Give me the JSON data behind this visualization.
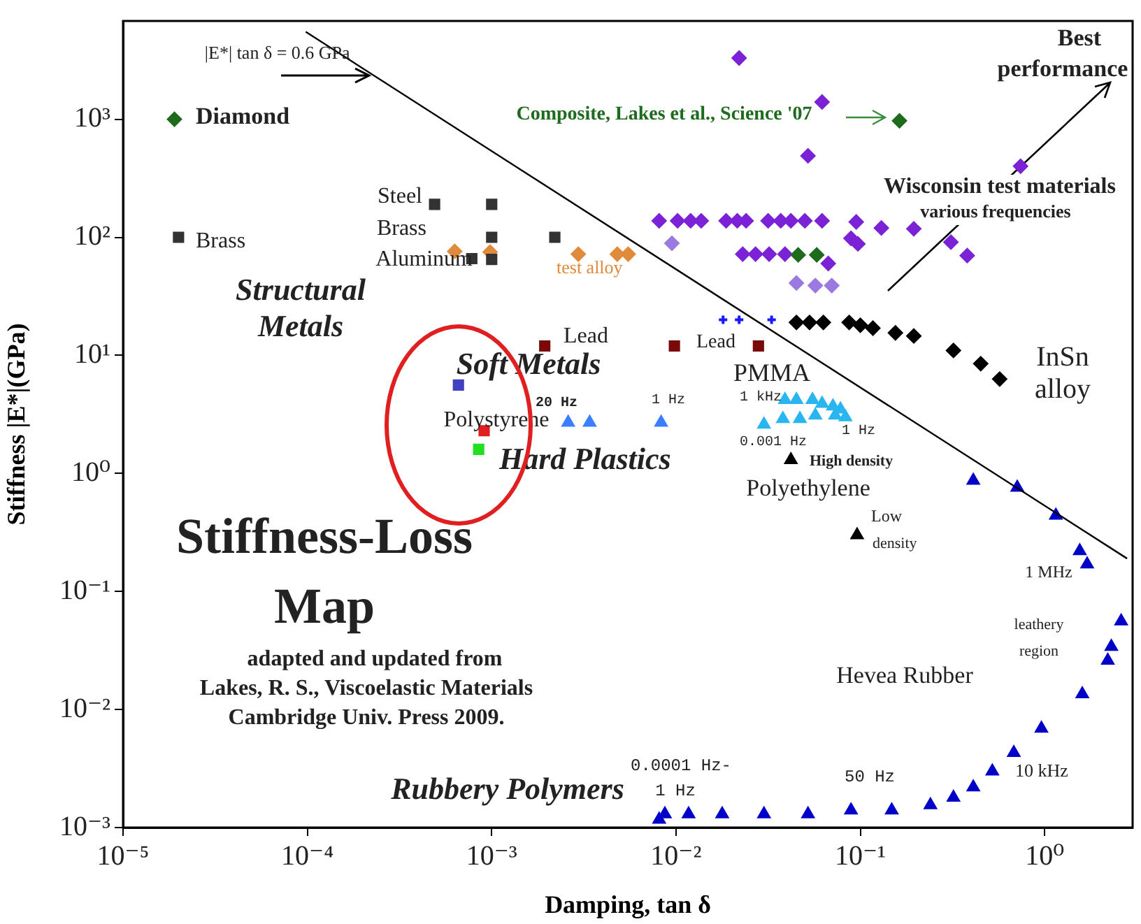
{
  "chart_data": {
    "type": "scatter",
    "xlabel": "Damping, tan δ",
    "ylabel": "Stiffness |E*|(GPa)",
    "log": "xy",
    "grid": false,
    "legend": false,
    "xlim": [
      1e-05,
      3
    ],
    "ylim": [
      0.001,
      6800
    ],
    "xticks": [
      {
        "value": 1e-05,
        "label": "10⁻⁵"
      },
      {
        "value": 0.0001,
        "label": "10⁻⁴"
      },
      {
        "value": 0.001,
        "label": "10⁻³"
      },
      {
        "value": 0.01,
        "label": "10⁻²"
      },
      {
        "value": 0.1,
        "label": "10⁻¹"
      },
      {
        "value": 1,
        "label": "10⁰"
      }
    ],
    "yticks": [
      {
        "value": 0.001,
        "label": "10⁻³"
      },
      {
        "value": 0.01,
        "label": "10⁻²"
      },
      {
        "value": 0.1,
        "label": "10⁻¹"
      },
      {
        "value": 1,
        "label": "10⁰"
      },
      {
        "value": 10,
        "label": "10¹"
      },
      {
        "value": 100,
        "label": "10²"
      },
      {
        "value": 1000,
        "label": "10³"
      }
    ],
    "series": [
      {
        "type": "line",
        "color": "#000000",
        "marker": "none",
        "line_style": "solid",
        "x": [
          9.8e-05,
          2.8
        ],
        "values": [
          5500,
          0.19
        ]
      },
      {
        "color": "#1e6b1e",
        "marker": "diamond",
        "x": [
          1.9e-05,
          0.163,
          0.046,
          0.058
        ],
        "values": [
          1000,
          970,
          71,
          71
        ]
      },
      {
        "color": "#333333",
        "marker": "square",
        "x": [
          2e-05,
          0.00049,
          0.001,
          0.001,
          0.0022,
          0.00078,
          0.001
        ],
        "values": [
          100,
          190,
          190,
          100,
          100,
          66,
          65
        ]
      },
      {
        "color": "#e08a3c",
        "marker": "diamond",
        "x": [
          0.00063,
          0.00098,
          0.00295,
          0.0048,
          0.0055
        ],
        "values": [
          76,
          75,
          72,
          72,
          72
        ]
      },
      {
        "color": "#7a0a0a",
        "marker": "square",
        "x": [
          0.00194,
          0.0098,
          0.028
        ],
        "values": [
          12,
          12,
          12
        ]
      },
      {
        "color": "#4040c0",
        "marker": "square",
        "x": [
          0.00066
        ],
        "values": [
          5.6
        ]
      },
      {
        "color": "#e02020",
        "marker": "square",
        "x": [
          0.00091
        ],
        "values": [
          2.3
        ]
      },
      {
        "color": "#20e020",
        "marker": "square",
        "x": [
          0.00085
        ],
        "values": [
          1.6
        ]
      },
      {
        "color": "#3a7fff",
        "marker": "triangle",
        "x": [
          0.0026,
          0.0034,
          0.0083
        ],
        "values": [
          2.7,
          2.7,
          2.7
        ]
      },
      {
        "color": "#29b6f0",
        "marker": "triangle",
        "x": [
          0.039,
          0.045,
          0.055,
          0.062,
          0.071,
          0.078,
          0.03,
          0.038,
          0.047,
          0.057,
          0.073,
          0.083
        ],
        "values": [
          4.2,
          4.2,
          4.2,
          3.9,
          3.7,
          3.5,
          2.6,
          2.9,
          2.9,
          3.1,
          3.1,
          3.0
        ]
      },
      {
        "color": "#000000",
        "marker": "triangle",
        "x": [
          0.042,
          0.096
        ],
        "values": [
          1.3,
          0.3
        ]
      },
      {
        "color": "#000000",
        "marker": "diamond",
        "x": [
          0.045,
          0.053,
          0.063,
          0.087,
          0.1,
          0.117,
          0.155,
          0.195,
          0.32,
          0.45,
          0.57
        ],
        "values": [
          19,
          19,
          19,
          19,
          18,
          17,
          15.5,
          14.6,
          11,
          8.5,
          6.3
        ]
      },
      {
        "color": "#1a1aff",
        "marker": "cross",
        "x": [
          0.018,
          0.022,
          0.033
        ],
        "values": [
          20,
          20,
          20
        ]
      },
      {
        "color": "#0000c8",
        "marker": "triangle",
        "x": [
          0.41,
          0.71,
          1.15,
          1.55,
          1.7,
          0.0081,
          0.0087,
          0.0117,
          0.0178,
          0.03,
          0.052,
          0.089,
          0.148,
          0.24,
          0.32,
          0.41,
          0.52,
          0.68,
          0.96,
          1.6,
          2.2,
          2.3,
          2.6
        ],
        "values": [
          0.87,
          0.76,
          0.44,
          0.22,
          0.17,
          0.00117,
          0.0013,
          0.0013,
          0.0013,
          0.0013,
          0.0013,
          0.0014,
          0.0014,
          0.00155,
          0.0018,
          0.0022,
          0.003,
          0.0043,
          0.0069,
          0.0135,
          0.026,
          0.034,
          0.056
        ]
      },
      {
        "color": "#7b22d6",
        "marker": "diamond",
        "x": [
          0.022,
          0.062,
          0.052,
          0.74,
          0.0081,
          0.0102,
          0.012,
          0.0137,
          0.0187,
          0.0215,
          0.024,
          0.0316,
          0.037,
          0.042,
          0.05,
          0.062,
          0.095,
          0.13,
          0.195,
          0.31,
          0.38,
          0.089,
          0.097,
          0.023,
          0.027,
          0.032,
          0.039,
          0.067
        ],
        "values": [
          3300,
          1400,
          490,
          400,
          138,
          138,
          138,
          138,
          138,
          138,
          138,
          138,
          138,
          138,
          138,
          138,
          135,
          120,
          118,
          91,
          70,
          98,
          88,
          72,
          72,
          72,
          72,
          60
        ]
      },
      {
        "color": "#9a7ae0",
        "marker": "diamond",
        "x": [
          0.0095,
          0.045,
          0.057,
          0.07
        ],
        "values": [
          89,
          41,
          39,
          39
        ]
      }
    ],
    "annotations": [
      {
        "text": "|E*| tan δ = 0.6 GPa",
        "x": 0.00021,
        "y": 2500
      },
      "Diamond",
      "Composite, Lakes et al., Science '07",
      "Best",
      "performance",
      "Wisconsin test materials",
      "various frequencies",
      "Steel",
      "Brass",
      "Brass",
      "Aluminum",
      "test alloy",
      "Structural",
      "Metals",
      "Lead",
      "Lead",
      "Soft Metals",
      "20 Hz",
      "1 Hz",
      "Polystyrene",
      "Hard Plastics",
      "PMMA",
      "1 kHz",
      "1 Hz",
      "0.001 Hz",
      "High density",
      "Polyethylene",
      "Low",
      "density",
      "InSn",
      "alloy",
      "1 MHz",
      "leathery",
      "region",
      "Hevea Rubber",
      "Stiffness-Loss",
      "Map",
      "adapted and updated from",
      "Lakes, R. S., Viscoelastic Materials",
      "Cambridge Univ. Press 2009.",
      "0.0001 Hz-",
      "1 Hz",
      "50 Hz",
      "10 kHz",
      "Rubbery Polymers"
    ]
  }
}
